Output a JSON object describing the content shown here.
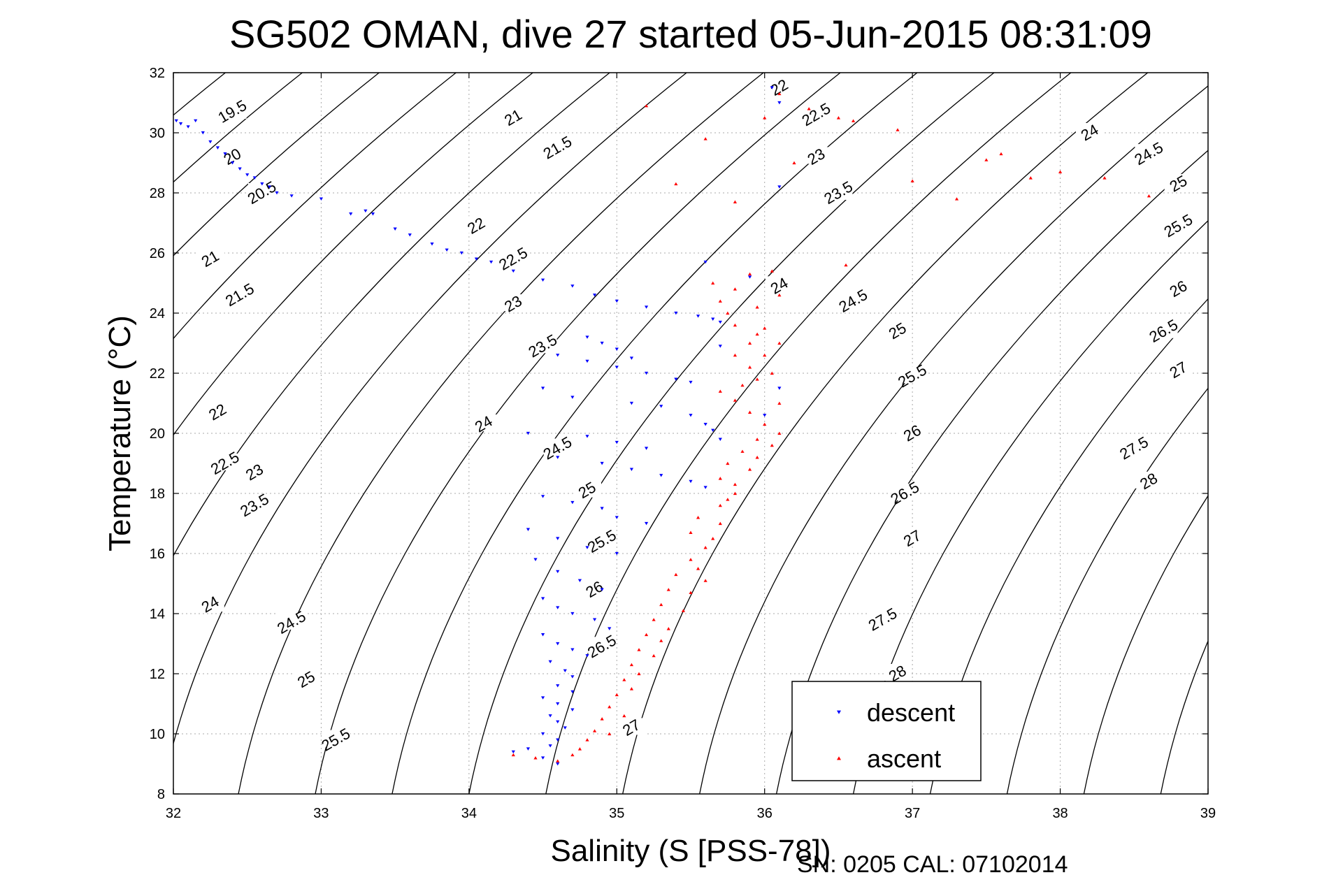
{
  "chart_data": {
    "type": "scatter",
    "title": "SG502 OMAN, dive 27 started 05-Jun-2015 08:31:09",
    "xlabel": "Salinity (S [PSS-78])",
    "ylabel": "Temperature (°C)",
    "footer": "SN: 0205  CAL: 07102014",
    "xlim": [
      32,
      39
    ],
    "ylim": [
      8,
      32
    ],
    "xticks": [
      32,
      33,
      34,
      35,
      36,
      37,
      38,
      39
    ],
    "yticks": [
      8,
      10,
      12,
      14,
      16,
      18,
      20,
      22,
      24,
      26,
      28,
      30,
      32
    ],
    "grid": true,
    "legend_position": "bottom-right",
    "colors": {
      "descent": "#0000ff",
      "ascent": "#ff0000",
      "contour": "#000000"
    },
    "density_contours": [
      {
        "label": "19.5",
        "label_at": [
          32.4,
          30.7
        ]
      },
      {
        "label": "20",
        "label_at": [
          32.4,
          29.2
        ]
      },
      {
        "label": "20.5",
        "label_at": [
          32.6,
          28.0
        ]
      },
      {
        "label": "21",
        "label_at": [
          32.25,
          25.8
        ]
      },
      {
        "label": "21",
        "label_at": [
          34.3,
          30.5
        ]
      },
      {
        "label": "21.5",
        "label_at": [
          32.45,
          24.6
        ]
      },
      {
        "label": "21.5",
        "label_at": [
          34.6,
          29.5
        ]
      },
      {
        "label": "22",
        "label_at": [
          32.3,
          20.7
        ]
      },
      {
        "label": "22",
        "label_at": [
          34.05,
          26.9
        ]
      },
      {
        "label": "22",
        "label_at": [
          36.1,
          31.5
        ]
      },
      {
        "label": "22.5",
        "label_at": [
          32.35,
          19.0
        ]
      },
      {
        "label": "22.5",
        "label_at": [
          34.3,
          25.8
        ]
      },
      {
        "label": "22.5",
        "label_at": [
          36.35,
          30.6
        ]
      },
      {
        "label": "23",
        "label_at": [
          32.55,
          18.7
        ]
      },
      {
        "label": "23",
        "label_at": [
          34.3,
          24.3
        ]
      },
      {
        "label": "23",
        "label_at": [
          36.35,
          29.2
        ]
      },
      {
        "label": "23.5",
        "label_at": [
          32.55,
          17.6
        ]
      },
      {
        "label": "23.5",
        "label_at": [
          34.5,
          22.9
        ]
      },
      {
        "label": "23.5",
        "label_at": [
          36.5,
          28.0
        ]
      },
      {
        "label": "24",
        "label_at": [
          32.25,
          14.3
        ]
      },
      {
        "label": "24",
        "label_at": [
          34.1,
          20.3
        ]
      },
      {
        "label": "24",
        "label_at": [
          36.1,
          24.9
        ]
      },
      {
        "label": "24",
        "label_at": [
          38.2,
          30.0
        ]
      },
      {
        "label": "24.5",
        "label_at": [
          32.8,
          13.7
        ]
      },
      {
        "label": "24.5",
        "label_at": [
          34.6,
          19.5
        ]
      },
      {
        "label": "24.5",
        "label_at": [
          36.6,
          24.4
        ]
      },
      {
        "label": "24.5",
        "label_at": [
          38.6,
          29.3
        ]
      },
      {
        "label": "25",
        "label_at": [
          32.9,
          11.8
        ]
      },
      {
        "label": "25",
        "label_at": [
          34.8,
          18.1
        ]
      },
      {
        "label": "25",
        "label_at": [
          36.9,
          23.4
        ]
      },
      {
        "label": "25",
        "label_at": [
          38.8,
          28.3
        ]
      },
      {
        "label": "25.5",
        "label_at": [
          33.1,
          9.8
        ]
      },
      {
        "label": "25.5",
        "label_at": [
          34.9,
          16.4
        ]
      },
      {
        "label": "25.5",
        "label_at": [
          37.0,
          21.9
        ]
      },
      {
        "label": "25.5",
        "label_at": [
          38.8,
          26.9
        ]
      },
      {
        "label": "26",
        "label_at": [
          34.85,
          14.8
        ]
      },
      {
        "label": "26",
        "label_at": [
          37.0,
          20.0
        ]
      },
      {
        "label": "26",
        "label_at": [
          38.8,
          24.8
        ]
      },
      {
        "label": "26.5",
        "label_at": [
          34.9,
          12.9
        ]
      },
      {
        "label": "26.5",
        "label_at": [
          36.95,
          18.0
        ]
      },
      {
        "label": "26.5",
        "label_at": [
          38.7,
          23.4
        ]
      },
      {
        "label": "27",
        "label_at": [
          35.1,
          10.2
        ]
      },
      {
        "label": "27",
        "label_at": [
          37.0,
          16.5
        ]
      },
      {
        "label": "27",
        "label_at": [
          38.8,
          22.1
        ]
      },
      {
        "label": "27.5",
        "label_at": [
          36.8,
          13.8
        ]
      },
      {
        "label": "27.5",
        "label_at": [
          38.5,
          19.5
        ]
      },
      {
        "label": "28",
        "label_at": [
          36.9,
          12.0
        ]
      },
      {
        "label": "28",
        "label_at": [
          38.6,
          18.4
        ]
      }
    ],
    "series": [
      {
        "name": "descent",
        "marker": "triangle-down",
        "points": [
          [
            32.02,
            30.4
          ],
          [
            32.05,
            30.3
          ],
          [
            32.1,
            30.2
          ],
          [
            32.15,
            30.4
          ],
          [
            32.2,
            30.0
          ],
          [
            32.25,
            29.7
          ],
          [
            32.3,
            29.5
          ],
          [
            32.35,
            29.3
          ],
          [
            32.4,
            29.0
          ],
          [
            32.45,
            28.8
          ],
          [
            32.5,
            28.6
          ],
          [
            32.55,
            28.5
          ],
          [
            32.6,
            28.3
          ],
          [
            32.65,
            28.2
          ],
          [
            32.7,
            28.0
          ],
          [
            32.8,
            27.9
          ],
          [
            33.0,
            27.8
          ],
          [
            33.2,
            27.3
          ],
          [
            33.3,
            27.4
          ],
          [
            33.35,
            27.3
          ],
          [
            33.5,
            26.8
          ],
          [
            33.6,
            26.6
          ],
          [
            33.75,
            26.3
          ],
          [
            33.85,
            26.1
          ],
          [
            33.95,
            26.0
          ],
          [
            34.05,
            25.8
          ],
          [
            34.15,
            25.7
          ],
          [
            34.3,
            25.4
          ],
          [
            34.5,
            25.1
          ],
          [
            34.7,
            24.9
          ],
          [
            34.85,
            24.6
          ],
          [
            35.0,
            24.4
          ],
          [
            35.2,
            24.2
          ],
          [
            35.4,
            24.0
          ],
          [
            35.55,
            23.9
          ],
          [
            35.65,
            23.8
          ],
          [
            35.7,
            23.7
          ],
          [
            34.8,
            23.2
          ],
          [
            34.9,
            23.0
          ],
          [
            35.0,
            22.8
          ],
          [
            35.1,
            22.5
          ],
          [
            34.6,
            22.6
          ],
          [
            34.8,
            22.4
          ],
          [
            35.0,
            22.2
          ],
          [
            35.2,
            22.0
          ],
          [
            35.4,
            21.8
          ],
          [
            35.5,
            21.7
          ],
          [
            34.5,
            21.5
          ],
          [
            34.7,
            21.2
          ],
          [
            35.1,
            21.0
          ],
          [
            35.3,
            20.9
          ],
          [
            35.5,
            20.6
          ],
          [
            35.6,
            20.3
          ],
          [
            35.65,
            20.1
          ],
          [
            35.7,
            19.8
          ],
          [
            34.4,
            20.0
          ],
          [
            34.8,
            19.9
          ],
          [
            35.0,
            19.7
          ],
          [
            35.2,
            19.5
          ],
          [
            34.6,
            19.2
          ],
          [
            34.9,
            19.0
          ],
          [
            35.1,
            18.8
          ],
          [
            35.3,
            18.6
          ],
          [
            35.5,
            18.4
          ],
          [
            35.6,
            18.2
          ],
          [
            34.5,
            17.9
          ],
          [
            34.7,
            17.7
          ],
          [
            34.9,
            17.5
          ],
          [
            35.0,
            17.2
          ],
          [
            35.2,
            17.0
          ],
          [
            34.4,
            16.8
          ],
          [
            34.6,
            16.5
          ],
          [
            34.8,
            16.2
          ],
          [
            35.0,
            16.0
          ],
          [
            34.45,
            15.8
          ],
          [
            34.6,
            15.4
          ],
          [
            34.75,
            15.1
          ],
          [
            34.9,
            14.8
          ],
          [
            34.5,
            14.5
          ],
          [
            34.6,
            14.2
          ],
          [
            34.7,
            14.0
          ],
          [
            34.85,
            13.8
          ],
          [
            34.95,
            13.5
          ],
          [
            34.5,
            13.3
          ],
          [
            34.6,
            13.0
          ],
          [
            34.7,
            12.8
          ],
          [
            34.8,
            12.6
          ],
          [
            34.55,
            12.4
          ],
          [
            34.65,
            12.1
          ],
          [
            34.7,
            11.9
          ],
          [
            34.6,
            11.6
          ],
          [
            34.7,
            11.4
          ],
          [
            34.5,
            11.2
          ],
          [
            34.6,
            11.0
          ],
          [
            34.7,
            10.8
          ],
          [
            34.55,
            10.6
          ],
          [
            34.6,
            10.4
          ],
          [
            34.65,
            10.2
          ],
          [
            34.5,
            10.0
          ],
          [
            34.6,
            9.8
          ],
          [
            34.55,
            9.6
          ],
          [
            34.4,
            9.5
          ],
          [
            34.3,
            9.4
          ],
          [
            34.5,
            9.2
          ],
          [
            34.6,
            9.0
          ],
          [
            35.6,
            25.7
          ],
          [
            35.9,
            25.2
          ],
          [
            36.0,
            20.6
          ],
          [
            36.1,
            28.2
          ],
          [
            36.05,
            31.5
          ],
          [
            36.1,
            31.0
          ],
          [
            36.1,
            21.5
          ],
          [
            35.7,
            22.9
          ]
        ]
      },
      {
        "name": "ascent",
        "marker": "triangle-up",
        "points": [
          [
            34.3,
            9.3
          ],
          [
            34.45,
            9.2
          ],
          [
            34.6,
            9.1
          ],
          [
            34.7,
            9.3
          ],
          [
            34.75,
            9.5
          ],
          [
            34.8,
            9.8
          ],
          [
            34.85,
            10.1
          ],
          [
            34.9,
            10.5
          ],
          [
            34.95,
            10.9
          ],
          [
            35.0,
            11.3
          ],
          [
            35.05,
            11.8
          ],
          [
            35.1,
            12.3
          ],
          [
            35.15,
            12.8
          ],
          [
            35.2,
            13.3
          ],
          [
            35.25,
            13.8
          ],
          [
            35.3,
            14.3
          ],
          [
            35.35,
            14.8
          ],
          [
            35.4,
            15.3
          ],
          [
            35.5,
            15.8
          ],
          [
            35.6,
            16.2
          ],
          [
            35.5,
            16.7
          ],
          [
            35.55,
            17.2
          ],
          [
            35.7,
            17.6
          ],
          [
            35.8,
            18.0
          ],
          [
            35.7,
            18.5
          ],
          [
            35.75,
            19.0
          ],
          [
            35.85,
            19.4
          ],
          [
            35.95,
            19.8
          ],
          [
            36.0,
            20.3
          ],
          [
            35.9,
            20.7
          ],
          [
            35.8,
            21.1
          ],
          [
            35.7,
            21.4
          ],
          [
            35.85,
            21.6
          ],
          [
            35.95,
            21.8
          ],
          [
            35.9,
            22.2
          ],
          [
            35.8,
            22.6
          ],
          [
            35.9,
            23.0
          ],
          [
            35.95,
            23.3
          ],
          [
            35.8,
            23.6
          ],
          [
            35.75,
            24.0
          ],
          [
            35.7,
            24.4
          ],
          [
            35.8,
            24.8
          ],
          [
            35.65,
            25.0
          ],
          [
            35.9,
            25.3
          ],
          [
            36.05,
            25.4
          ],
          [
            34.95,
            10.0
          ],
          [
            35.05,
            10.6
          ],
          [
            35.1,
            11.5
          ],
          [
            35.15,
            12.0
          ],
          [
            35.25,
            12.6
          ],
          [
            35.3,
            13.1
          ],
          [
            35.35,
            13.5
          ],
          [
            35.45,
            14.1
          ],
          [
            35.5,
            14.7
          ],
          [
            35.6,
            15.1
          ],
          [
            35.55,
            15.5
          ],
          [
            35.65,
            16.5
          ],
          [
            35.7,
            17.0
          ],
          [
            35.75,
            17.8
          ],
          [
            35.8,
            18.3
          ],
          [
            35.9,
            18.8
          ],
          [
            35.95,
            19.2
          ],
          [
            36.05,
            19.6
          ],
          [
            36.1,
            20.0
          ],
          [
            36.1,
            21.0
          ],
          [
            36.05,
            22.0
          ],
          [
            36.0,
            22.6
          ],
          [
            36.1,
            23.0
          ],
          [
            36.0,
            23.5
          ],
          [
            35.95,
            24.2
          ],
          [
            36.1,
            24.6
          ],
          [
            35.2,
            30.9
          ],
          [
            35.4,
            28.3
          ],
          [
            35.6,
            29.8
          ],
          [
            35.8,
            27.7
          ],
          [
            36.0,
            30.5
          ],
          [
            36.1,
            31.3
          ],
          [
            36.3,
            30.8
          ],
          [
            36.5,
            30.5
          ],
          [
            36.6,
            30.4
          ],
          [
            36.2,
            29.0
          ],
          [
            36.9,
            30.1
          ],
          [
            37.0,
            28.4
          ],
          [
            37.3,
            27.8
          ],
          [
            37.5,
            29.1
          ],
          [
            37.6,
            29.3
          ],
          [
            37.8,
            28.5
          ],
          [
            38.0,
            28.7
          ],
          [
            38.3,
            28.5
          ],
          [
            38.6,
            27.9
          ],
          [
            36.55,
            25.6
          ]
        ]
      }
    ],
    "legend": [
      "descent",
      "ascent"
    ]
  }
}
